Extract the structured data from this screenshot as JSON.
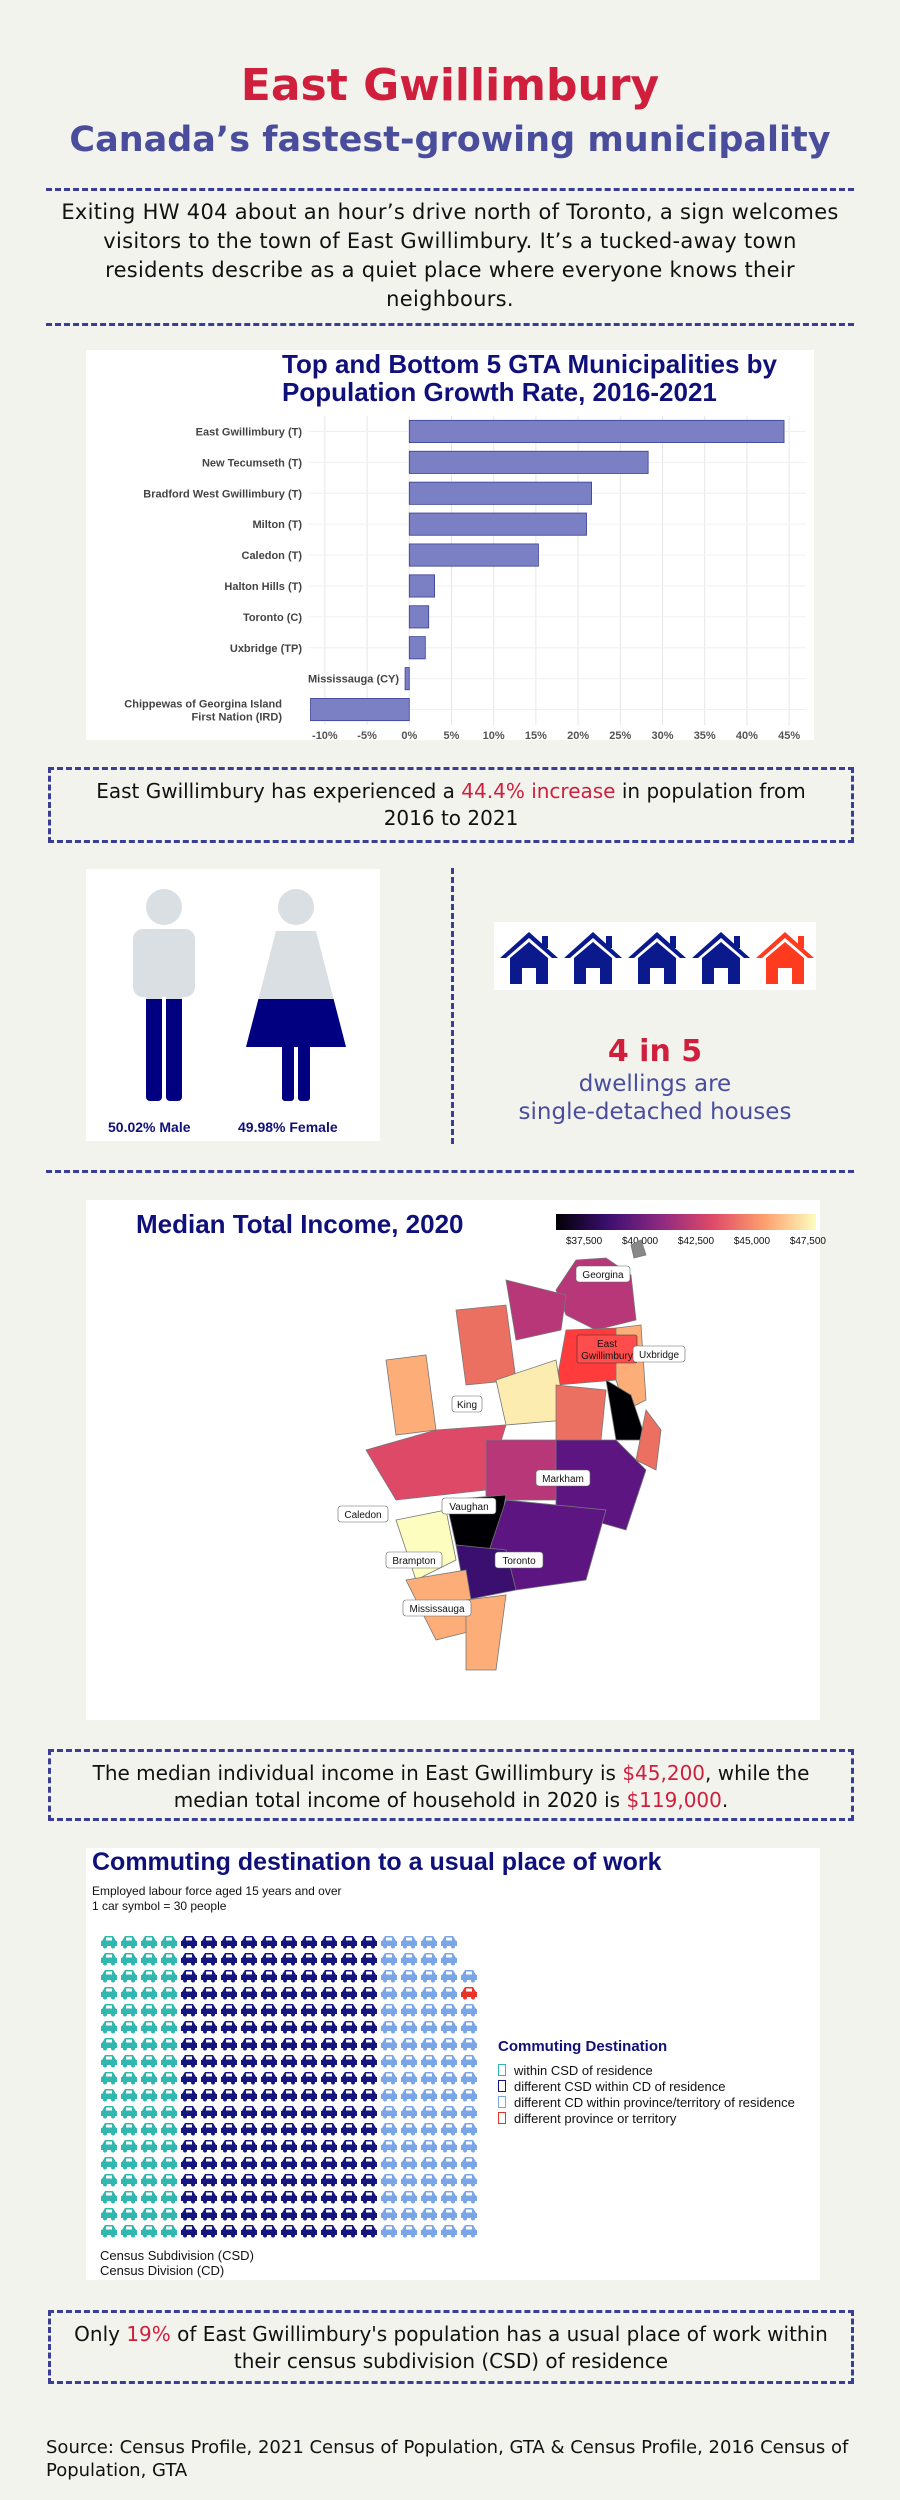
{
  "header": {
    "title": "East Gwillimbury",
    "subtitle": "Canada’s fastest-growing municipality",
    "intro": "Exiting HW 404 about an hour’s drive north of Toronto, a sign welcomes visitors to the town of East Gwillimbury. It’s a tucked-away town residents describe as a quiet place where everyone knows their neighbours."
  },
  "growth_chart": {
    "chart_data": {
      "type": "bar",
      "orientation": "horizontal",
      "title": "Top and Bottom 5 GTA Municipalities by Population Growth Rate, 2016-2021",
      "categories": [
        "East Gwillimbury (T)",
        "New Tecumseth (T)",
        "Bradford West Gwillimbury (T)",
        "Milton (T)",
        "Caledon (T)",
        "Halton Hills (T)",
        "Toronto (C)",
        "Uxbridge (TP)",
        "Mississauga (CY)",
        "Chippewas of Georgina Island First Nation (IRD)"
      ],
      "values": [
        44.4,
        28.3,
        21.6,
        21.0,
        15.3,
        3.0,
        2.3,
        1.9,
        -0.5,
        -11.7
      ],
      "xlim": [
        -12,
        47
      ],
      "xticks": [
        "-10%",
        "-5%",
        "0%",
        "5%",
        "10%",
        "15%",
        "20%",
        "25%",
        "30%",
        "35%",
        "40%",
        "45%"
      ],
      "xtick_values": [
        -10,
        -5,
        0,
        5,
        10,
        15,
        20,
        25,
        30,
        35,
        40,
        45
      ],
      "bar_color": "#7b7fc4",
      "grid": true
    }
  },
  "callout_growth": {
    "prefix": "East Gwillimbury has experienced a ",
    "highlight": "44.4% increase",
    "suffix": " in population from 2016 to 2021"
  },
  "gender": {
    "male_label": "50.02% Male",
    "female_label": "49.98% Female",
    "male_pct": 50.02,
    "female_pct": 49.98,
    "figure_color": "#d9dfe3",
    "fill_color": "#000080"
  },
  "dwellings": {
    "ratio": "4 in 5",
    "line1": "dwellings are",
    "line2": "single-detached houses",
    "houses_total": 5,
    "houses_highlighted": 4,
    "house_color": "#0a1a8c",
    "other_color": "#ff3b1f"
  },
  "income_map": {
    "title": "Median Total Income, 2020",
    "legend_ticks": [
      "$37,500",
      "$40,000",
      "$42,500",
      "$45,000",
      "$47,500"
    ],
    "labels": {
      "georgina": "Georgina",
      "east_gwillimbury_1": "East",
      "east_gwillimbury_2": "Gwillimbury",
      "uxbridge": "Uxbridge",
      "king": "King",
      "markham": "Markham",
      "caledon": "Caledon",
      "vaughan": "Vaughan",
      "brampton": "Brampton",
      "toronto": "Toronto",
      "mississauga": "Mississauga"
    }
  },
  "callout_income": {
    "prefix": "The median individual income in East Gwillimbury is ",
    "individual": "$45,200",
    "middle": ", while the median total income of household in 2020 is ",
    "household": "$119,000",
    "suffix": "."
  },
  "commute": {
    "title": "Commuting destination to a usual place of work",
    "note1": "Employed labour force aged 15 years and over",
    "note2": "1 car symbol = 30 people",
    "legend_title": "Commuting Destination",
    "legend": [
      {
        "label": "within CSD of residence",
        "color": "#2fb7b0"
      },
      {
        "label": "different CSD within CD of residence",
        "color": "#151580"
      },
      {
        "label": "different CD within province/territory of residence",
        "color": "#7aa6e8"
      },
      {
        "label": "different province or territory",
        "color": "#e8342b"
      }
    ],
    "footnote1": "Census Subdivision (CSD)",
    "footnote2": "Census Division (CD)",
    "grid_rows": 18,
    "grid_cols": 19
  },
  "callout_commute": {
    "prefix": "Only ",
    "highlight": "19%",
    "suffix": " of East Gwillimbury's population has a usual place of work within their census subdivision (CSD) of residence"
  },
  "source": "Source: Census Profile, 2021 Census of Population, GTA & Census Profile, 2016 Census of Population, GTA"
}
